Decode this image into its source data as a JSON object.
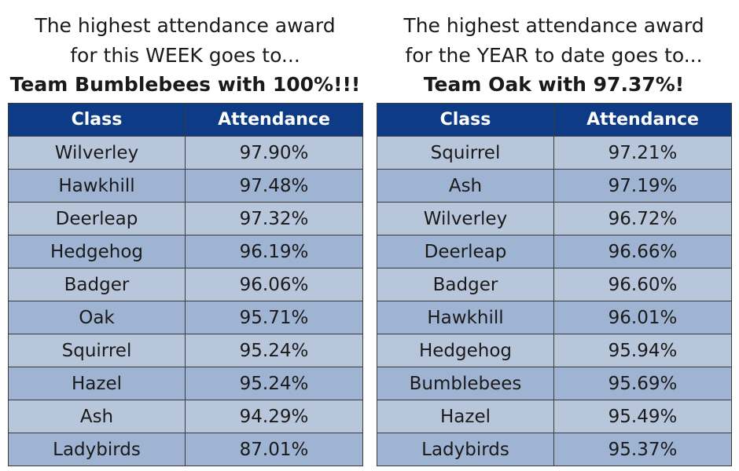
{
  "week": {
    "heading_line1": "The highest attendance award",
    "heading_line2": "for this WEEK goes to...",
    "winner": "Team Bumblebees with 100%!!!",
    "columns": [
      "Class",
      "Attendance"
    ],
    "rows": [
      {
        "class": "Wilverley",
        "attendance": "97.90%"
      },
      {
        "class": "Hawkhill",
        "attendance": "97.48%"
      },
      {
        "class": "Deerleap",
        "attendance": "97.32%"
      },
      {
        "class": "Hedgehog",
        "attendance": "96.19%"
      },
      {
        "class": "Badger",
        "attendance": "96.06%"
      },
      {
        "class": "Oak",
        "attendance": "95.71%"
      },
      {
        "class": "Squirrel",
        "attendance": "95.24%"
      },
      {
        "class": "Hazel",
        "attendance": "95.24%"
      },
      {
        "class": "Ash",
        "attendance": "94.29%"
      },
      {
        "class": "Ladybirds",
        "attendance": "87.01%"
      }
    ]
  },
  "year": {
    "heading_line1": "The highest attendance award",
    "heading_line2": "for the YEAR to date goes to...",
    "winner": "Team Oak with 97.37%!",
    "columns": [
      "Class",
      "Attendance"
    ],
    "rows": [
      {
        "class": "Squirrel",
        "attendance": "97.21%"
      },
      {
        "class": "Ash",
        "attendance": "97.19%"
      },
      {
        "class": "Wilverley",
        "attendance": "96.72%"
      },
      {
        "class": "Deerleap",
        "attendance": "96.66%"
      },
      {
        "class": "Badger",
        "attendance": "96.60%"
      },
      {
        "class": "Hawkhill",
        "attendance": "96.01%"
      },
      {
        "class": "Hedgehog",
        "attendance": "95.94%"
      },
      {
        "class": "Bumblebees",
        "attendance": "95.69%"
      },
      {
        "class": "Hazel",
        "attendance": "95.49%"
      },
      {
        "class": "Ladybirds",
        "attendance": "95.37%"
      }
    ]
  },
  "colors": {
    "header_bg": "#0e3b86",
    "row_light": "#b8c6dc",
    "row_dark": "#9fb3d2"
  }
}
